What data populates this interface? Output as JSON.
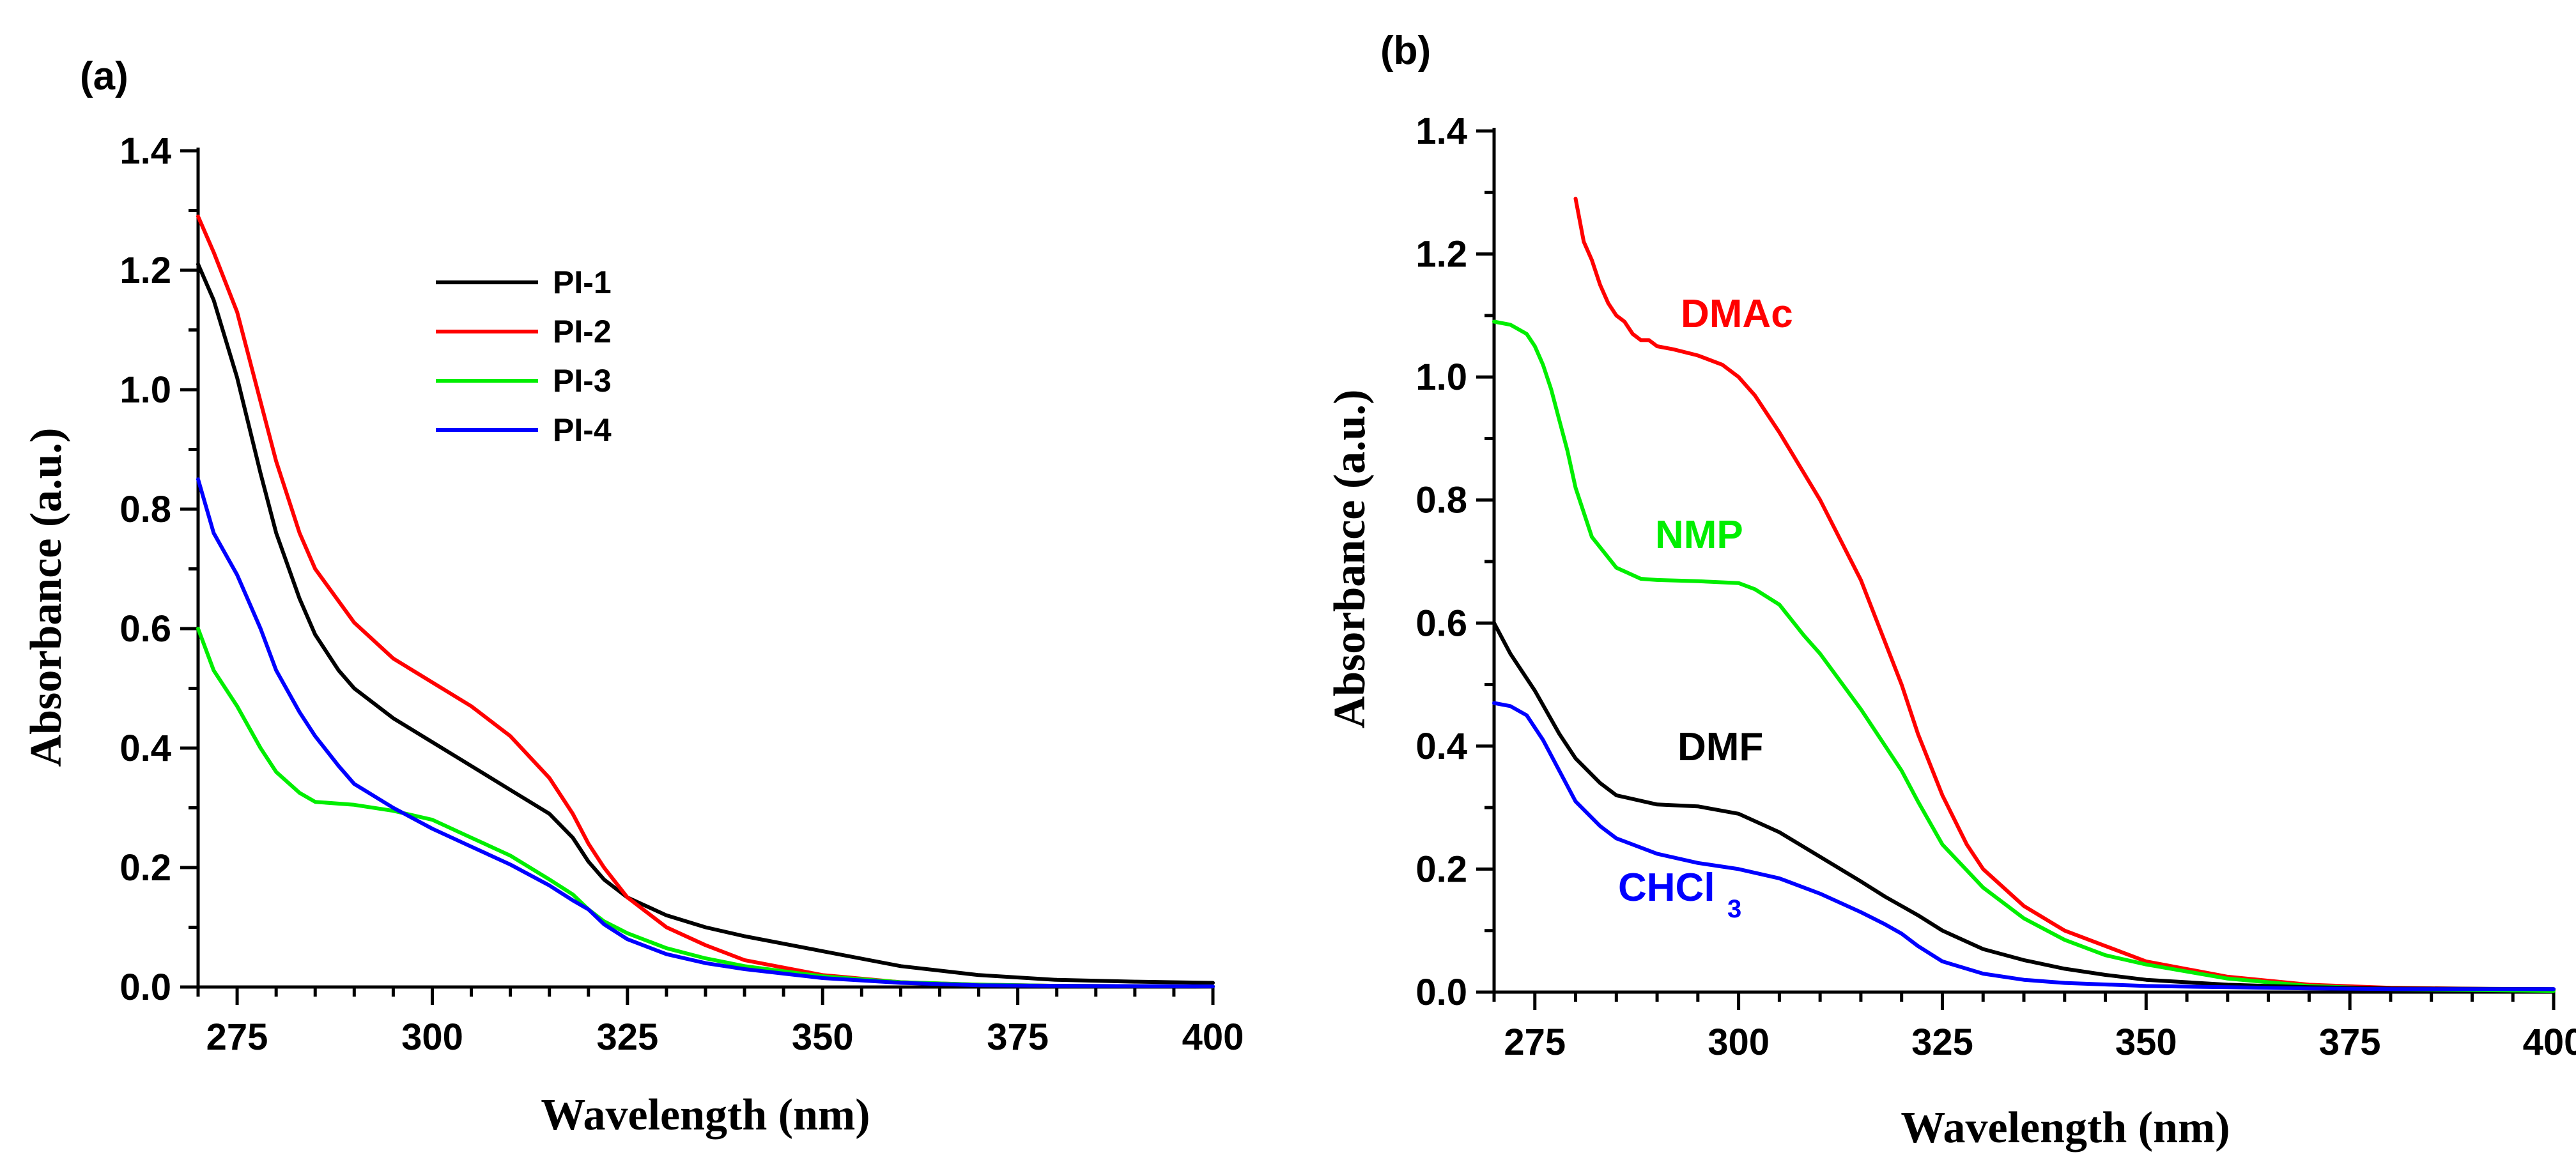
{
  "chart_data": [
    {
      "panel": "(a)",
      "type": "line",
      "xlabel": "Wavelength (nm)",
      "ylabel": "Absorbance (a.u.)",
      "xlim": [
        270,
        400
      ],
      "ylim": [
        0,
        1.4
      ],
      "xticks": [
        "275",
        "300",
        "325",
        "350",
        "375",
        "400"
      ],
      "yticks": [
        "0.0",
        "0.2",
        "0.4",
        "0.6",
        "0.8",
        "1.0",
        "1.2",
        "1.4"
      ],
      "legend": "upper-middle",
      "series": [
        {
          "name": "PI-1",
          "color": "#000000",
          "x": [
            270,
            272,
            275,
            278,
            280,
            283,
            285,
            288,
            290,
            295,
            300,
            305,
            310,
            315,
            318,
            320,
            322,
            325,
            330,
            335,
            340,
            350,
            360,
            370,
            380,
            390,
            400
          ],
          "y": [
            1.21,
            1.15,
            1.02,
            0.86,
            0.76,
            0.65,
            0.59,
            0.53,
            0.5,
            0.45,
            0.41,
            0.37,
            0.33,
            0.29,
            0.25,
            0.21,
            0.18,
            0.15,
            0.12,
            0.1,
            0.085,
            0.06,
            0.035,
            0.02,
            0.012,
            0.009,
            0.007
          ]
        },
        {
          "name": "PI-2",
          "color": "#ff0000",
          "x": [
            270,
            272,
            275,
            278,
            280,
            283,
            285,
            290,
            295,
            300,
            305,
            310,
            315,
            318,
            320,
            322,
            325,
            330,
            335,
            340,
            350,
            360,
            370,
            380,
            400
          ],
          "y": [
            1.29,
            1.23,
            1.13,
            0.98,
            0.88,
            0.76,
            0.7,
            0.61,
            0.55,
            0.51,
            0.47,
            0.42,
            0.35,
            0.29,
            0.24,
            0.2,
            0.15,
            0.1,
            0.07,
            0.045,
            0.02,
            0.008,
            0.004,
            0.002,
            0.001
          ]
        },
        {
          "name": "PI-3",
          "color": "#00ee00",
          "x": [
            270,
            272,
            275,
            278,
            280,
            283,
            285,
            290,
            295,
            300,
            305,
            310,
            315,
            318,
            320,
            322,
            325,
            330,
            335,
            340,
            350,
            360,
            370,
            380,
            400
          ],
          "y": [
            0.6,
            0.53,
            0.47,
            0.4,
            0.36,
            0.325,
            0.31,
            0.305,
            0.295,
            0.28,
            0.25,
            0.22,
            0.18,
            0.155,
            0.13,
            0.11,
            0.09,
            0.065,
            0.048,
            0.035,
            0.018,
            0.008,
            0.004,
            0.002,
            0.001
          ]
        },
        {
          "name": "PI-4",
          "color": "#0000ff",
          "x": [
            270,
            272,
            275,
            278,
            280,
            283,
            285,
            288,
            290,
            295,
            300,
            305,
            310,
            315,
            318,
            320,
            322,
            325,
            330,
            335,
            340,
            350,
            360,
            370,
            380,
            400
          ],
          "y": [
            0.85,
            0.76,
            0.69,
            0.6,
            0.53,
            0.46,
            0.42,
            0.37,
            0.34,
            0.3,
            0.265,
            0.235,
            0.205,
            0.17,
            0.145,
            0.13,
            0.105,
            0.08,
            0.055,
            0.04,
            0.03,
            0.015,
            0.007,
            0.003,
            0.002,
            0.001
          ]
        }
      ]
    },
    {
      "panel": "(b)",
      "type": "line",
      "xlabel": "Wavelength (nm)",
      "ylabel": "Absorbance (a.u.)",
      "xlim": [
        270,
        400
      ],
      "ylim": [
        0,
        1.4
      ],
      "xticks": [
        "275",
        "300",
        "325",
        "350",
        "375",
        "400"
      ],
      "yticks": [
        "0.0",
        "0.2",
        "0.4",
        "0.6",
        "0.8",
        "1.0",
        "1.2",
        "1.4"
      ],
      "legend": "inline labels",
      "series": [
        {
          "name": "DMAc",
          "color": "#ff0000",
          "x": [
            280,
            281,
            282,
            283,
            284,
            285,
            286,
            287,
            288,
            289,
            290,
            292,
            295,
            298,
            300,
            302,
            305,
            310,
            315,
            320,
            322,
            325,
            328,
            330,
            335,
            340,
            345,
            350,
            360,
            370,
            380,
            400
          ],
          "y": [
            1.29,
            1.22,
            1.19,
            1.15,
            1.12,
            1.1,
            1.09,
            1.07,
            1.06,
            1.06,
            1.05,
            1.045,
            1.035,
            1.02,
            1.0,
            0.97,
            0.91,
            0.8,
            0.67,
            0.5,
            0.42,
            0.32,
            0.24,
            0.2,
            0.14,
            0.1,
            0.075,
            0.05,
            0.025,
            0.012,
            0.007,
            0.004
          ]
        },
        {
          "name": "NMP",
          "color": "#00ee00",
          "x": [
            270,
            272,
            274,
            275,
            276,
            277,
            278,
            279,
            280,
            282,
            285,
            288,
            290,
            295,
            300,
            302,
            305,
            308,
            310,
            315,
            320,
            322,
            325,
            330,
            335,
            340,
            345,
            350,
            360,
            370,
            380,
            400
          ],
          "y": [
            1.09,
            1.085,
            1.07,
            1.05,
            1.02,
            0.98,
            0.93,
            0.88,
            0.82,
            0.74,
            0.69,
            0.672,
            0.67,
            0.668,
            0.665,
            0.655,
            0.63,
            0.58,
            0.55,
            0.46,
            0.36,
            0.31,
            0.24,
            0.17,
            0.12,
            0.085,
            0.06,
            0.045,
            0.022,
            0.01,
            0.005,
            0.002
          ]
        },
        {
          "name": "DMF",
          "color": "#000000",
          "x": [
            270,
            272,
            275,
            278,
            280,
            283,
            285,
            290,
            295,
            300,
            305,
            310,
            315,
            318,
            320,
            322,
            325,
            330,
            335,
            340,
            345,
            350,
            360,
            370,
            380,
            400
          ],
          "y": [
            0.6,
            0.55,
            0.49,
            0.42,
            0.38,
            0.34,
            0.32,
            0.305,
            0.302,
            0.29,
            0.26,
            0.22,
            0.18,
            0.155,
            0.14,
            0.125,
            0.1,
            0.07,
            0.052,
            0.038,
            0.028,
            0.02,
            0.012,
            0.008,
            0.006,
            0.005
          ]
        },
        {
          "name": "CHCl3",
          "color": "#0000ff",
          "x": [
            270,
            272,
            274,
            276,
            278,
            280,
            283,
            285,
            290,
            295,
            300,
            305,
            310,
            315,
            318,
            320,
            322,
            325,
            330,
            335,
            340,
            350,
            360,
            370,
            380,
            400
          ],
          "y": [
            0.47,
            0.465,
            0.45,
            0.41,
            0.36,
            0.31,
            0.27,
            0.25,
            0.225,
            0.21,
            0.2,
            0.185,
            0.16,
            0.13,
            0.11,
            0.095,
            0.075,
            0.05,
            0.03,
            0.02,
            0.015,
            0.01,
            0.008,
            0.006,
            0.005,
            0.005
          ]
        }
      ]
    }
  ],
  "figure": {
    "panels": [
      {
        "label": "(a)",
        "xlabel": "Wavelength (nm)",
        "ylabel": "Absorbance (a.u.)",
        "legend_items": [
          "PI-1",
          "PI-2",
          "PI-3",
          "PI-4"
        ]
      },
      {
        "label": "(b)",
        "xlabel": "Wavelength (nm)",
        "ylabel": "Absorbance (a.u.)",
        "inline_labels": [
          {
            "text": "DMAc",
            "color": "#ff0000"
          },
          {
            "text": "NMP",
            "color": "#00ee00"
          },
          {
            "text": "DMF",
            "color": "#000000"
          },
          {
            "text": "CHCl",
            "sub": "3",
            "color": "#0000ff"
          }
        ]
      }
    ]
  }
}
